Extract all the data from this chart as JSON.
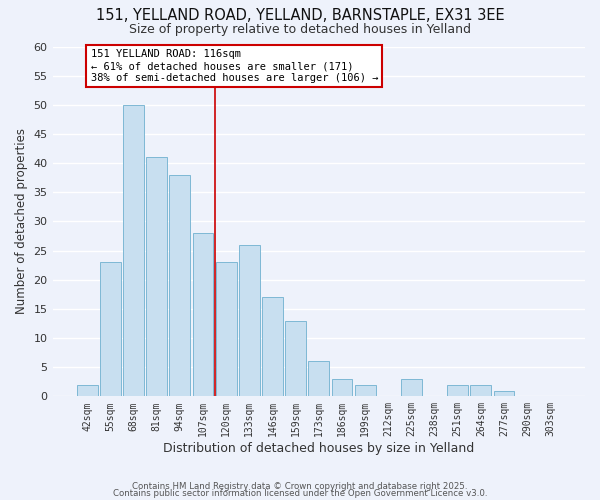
{
  "title": "151, YELLAND ROAD, YELLAND, BARNSTAPLE, EX31 3EE",
  "subtitle": "Size of property relative to detached houses in Yelland",
  "xlabel": "Distribution of detached houses by size in Yelland",
  "ylabel": "Number of detached properties",
  "bar_labels": [
    "42sqm",
    "55sqm",
    "68sqm",
    "81sqm",
    "94sqm",
    "107sqm",
    "120sqm",
    "133sqm",
    "146sqm",
    "159sqm",
    "173sqm",
    "186sqm",
    "199sqm",
    "212sqm",
    "225sqm",
    "238sqm",
    "251sqm",
    "264sqm",
    "277sqm",
    "290sqm",
    "303sqm"
  ],
  "bar_values": [
    2,
    23,
    50,
    41,
    38,
    28,
    23,
    26,
    17,
    13,
    6,
    3,
    2,
    0,
    3,
    0,
    2,
    2,
    1,
    0,
    0
  ],
  "bar_color": "#c8dff0",
  "bar_edge_color": "#7eb8d4",
  "highlight_line_after_bar": 6,
  "highlight_color": "#cc0000",
  "annotation_title": "151 YELLAND ROAD: 116sqm",
  "annotation_line1": "← 61% of detached houses are smaller (171)",
  "annotation_line2": "38% of semi-detached houses are larger (106) →",
  "annotation_box_color": "#ffffff",
  "annotation_border_color": "#cc0000",
  "ylim": [
    0,
    60
  ],
  "yticks": [
    0,
    5,
    10,
    15,
    20,
    25,
    30,
    35,
    40,
    45,
    50,
    55,
    60
  ],
  "background_color": "#eef2fb",
  "grid_color": "#ffffff",
  "footer_line1": "Contains HM Land Registry data © Crown copyright and database right 2025.",
  "footer_line2": "Contains public sector information licensed under the Open Government Licence v3.0."
}
